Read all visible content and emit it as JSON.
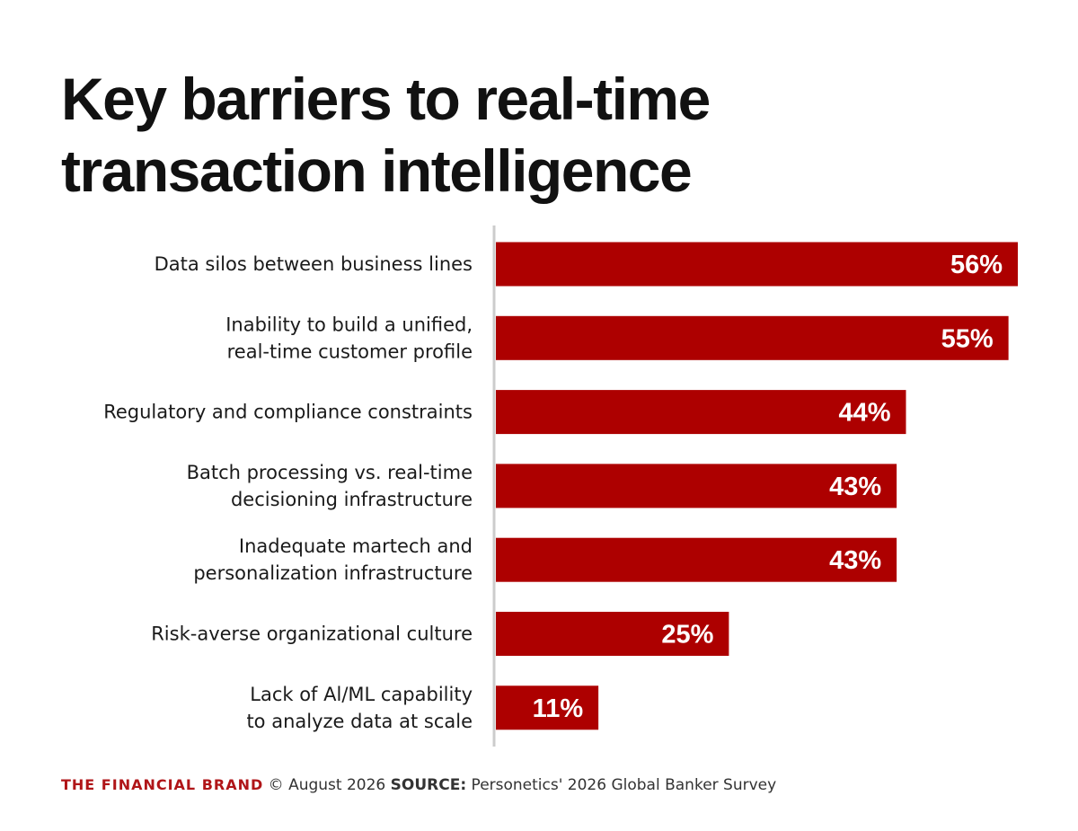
{
  "chart_data": {
    "type": "bar",
    "orientation": "horizontal",
    "title": "Key barriers to real-time transaction intelligence",
    "title_lines": [
      "Key barriers to real-time",
      "transaction intelligence"
    ],
    "categories": [
      [
        "Data silos between business lines"
      ],
      [
        "Inability to build a unified,",
        "real-time customer profile"
      ],
      [
        "Regulatory and compliance constraints"
      ],
      [
        "Batch processing vs. real-time",
        "decisioning infrastructure"
      ],
      [
        "Inadequate martech and",
        "personalization infrastructure"
      ],
      [
        "Risk-averse organizational culture"
      ],
      [
        "Lack of Al/ML capability",
        "to analyze data at scale"
      ]
    ],
    "values": [
      56,
      55,
      44,
      43,
      43,
      25,
      11
    ],
    "value_labels": [
      "56%",
      "55%",
      "44%",
      "43%",
      "43%",
      "25%",
      "11%"
    ],
    "unit": "%",
    "xlim": [
      0,
      56
    ],
    "grid": false,
    "legend": "none",
    "bar_color": "#ad0000",
    "axis_line_color": "#cccccc"
  },
  "footer": {
    "brand": "THE FINANCIAL BRAND",
    "date": "© August 2026",
    "source_label": "SOURCE:",
    "source_text": "Personetics' 2026 Global Banker Survey"
  },
  "colors": {
    "brand": "#b01518",
    "bar": "#ad0000",
    "title": "#111111"
  }
}
